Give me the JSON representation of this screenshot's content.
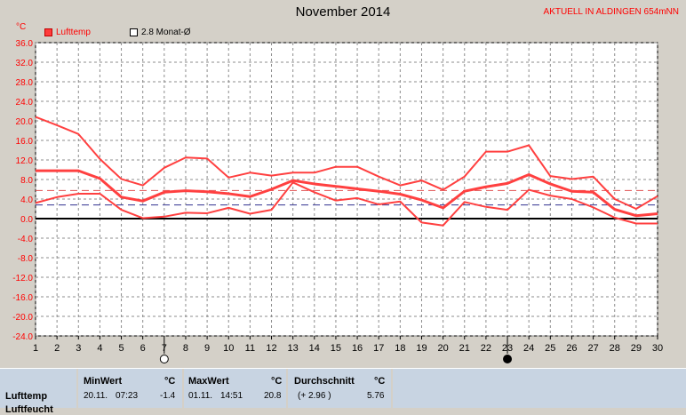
{
  "header": {
    "title": "November 2014",
    "station": "AKTUELL IN ALDINGEN 654mNN",
    "unit": "°C"
  },
  "legend": {
    "series_label": "Lufttemp",
    "avg_label": "2.8 Monat-Ø"
  },
  "colors": {
    "plot_bg": "#ffffff",
    "line": "#ff4040",
    "dashed_red": "#e05050",
    "dashed_navy": "#303090",
    "zero_line": "#000000"
  },
  "chart_data": {
    "type": "line",
    "x": [
      1,
      2,
      3,
      4,
      5,
      6,
      7,
      8,
      9,
      10,
      11,
      12,
      13,
      14,
      15,
      16,
      17,
      18,
      19,
      20,
      21,
      22,
      23,
      24,
      25,
      26,
      27,
      28,
      29,
      30
    ],
    "ylim": [
      -24,
      36
    ],
    "yticks": [
      "36.0",
      "32.0",
      "28.0",
      "24.0",
      "20.0",
      "16.0",
      "12.0",
      "8.0",
      "4.0",
      "0.0",
      "-4.0",
      "-8.0",
      "-12.0",
      "-16.0",
      "-20.0",
      "-24.0"
    ],
    "xticks": [
      "1",
      "2",
      "3",
      "4",
      "5",
      "6",
      "7",
      "8",
      "9",
      "10",
      "11",
      "12",
      "13",
      "14",
      "15",
      "16",
      "17",
      "18",
      "19",
      "20",
      "21",
      "22",
      "23",
      "24",
      "25",
      "26",
      "27",
      "28",
      "29",
      "30"
    ],
    "grid": true,
    "series": [
      {
        "values": [
          20.8,
          19.1,
          17.3,
          12.2,
          8.1,
          6.8,
          10.4,
          12.5,
          12.3,
          8.4,
          9.4,
          8.8,
          9.4,
          9.4,
          10.6,
          10.6,
          8.6,
          6.8,
          7.8,
          5.9,
          8.6,
          13.7,
          13.7,
          15.0,
          8.7,
          8.1,
          8.6,
          4.0,
          2.0,
          4.6
        ]
      },
      {
        "values": [
          9.8,
          9.8,
          9.8,
          8.2,
          4.4,
          3.6,
          5.4,
          5.7,
          5.5,
          5.1,
          4.5,
          6.0,
          7.8,
          7.1,
          6.6,
          6.1,
          5.6,
          5.0,
          3.8,
          2.2,
          5.6,
          6.5,
          7.2,
          9.0,
          7.1,
          5.6,
          5.4,
          1.9,
          0.6,
          1.0
        ]
      },
      {
        "values": [
          3.2,
          4.4,
          5.1,
          5.1,
          1.8,
          0.1,
          0.4,
          1.2,
          1.1,
          2.2,
          1.0,
          1.8,
          7.4,
          5.4,
          3.7,
          4.2,
          2.9,
          3.5,
          -0.8,
          -1.4,
          3.4,
          2.4,
          1.8,
          5.9,
          4.7,
          4.0,
          2.3,
          0.2,
          -1.0,
          -1.0
        ]
      }
    ],
    "reference_lines": [
      {
        "value": 5.76,
        "style": "dashed",
        "color": "red"
      },
      {
        "value": 2.8,
        "style": "dashed",
        "color": "navy"
      }
    ],
    "markers": [
      {
        "x": 7,
        "symbol": "open-circle"
      },
      {
        "x": 23,
        "symbol": "filled-circle"
      }
    ]
  },
  "stats": {
    "row_label": "Lufttemp",
    "row_label2": "Luftfeucht",
    "min": {
      "header": "MinWert",
      "unit": "°C",
      "date": "20.11.",
      "time": "07:23",
      "value": "-1.4"
    },
    "max": {
      "header": "MaxWert",
      "unit": "°C",
      "date": "01.11.",
      "time": "14:51",
      "value": "20.8"
    },
    "avg": {
      "header": "Durchschnitt",
      "unit": "°C",
      "delta": "(+ 2.96 )",
      "value": "5.76"
    }
  }
}
